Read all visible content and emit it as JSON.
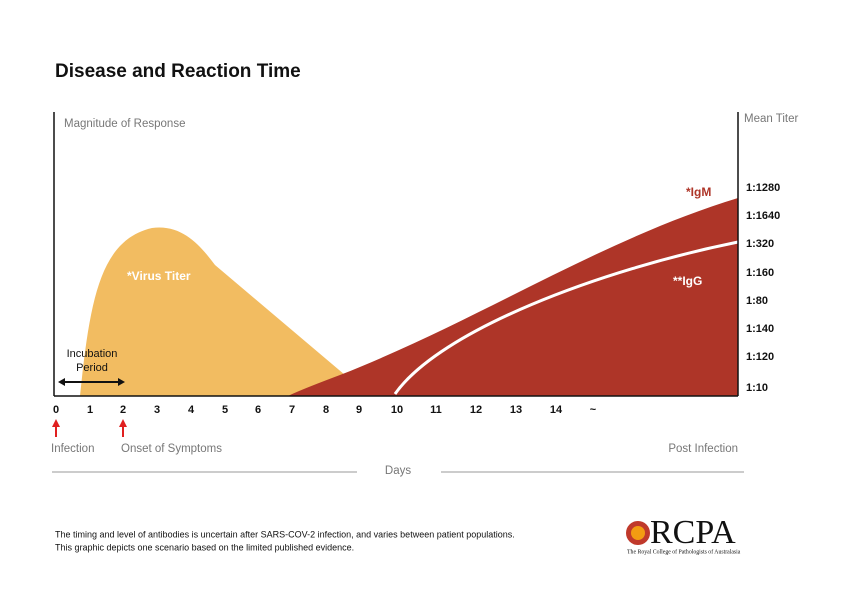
{
  "title": "Disease and Reaction Time",
  "left_axis_label": "Magnitude of Response",
  "right_axis_label": "Mean Titer",
  "x_labels": [
    "0",
    "1",
    "2",
    "3",
    "4",
    "5",
    "6",
    "7",
    "8",
    "9",
    "10",
    "11",
    "12",
    "13",
    "14",
    "~"
  ],
  "titer_labels": [
    "1:1280",
    "1:1640",
    "1:320",
    "1:160",
    "1:80",
    "1:140",
    "1:120",
    "1:10"
  ],
  "curves": {
    "virus": "*Virus Titer",
    "igm": "*IgM",
    "igg": "**IgG"
  },
  "incubation": [
    "Incubation",
    "Period"
  ],
  "markers": {
    "infection": "Infection",
    "onset": "Onset of Symptoms",
    "post": "Post Infection"
  },
  "days": "Days",
  "footnote": [
    "The timing and level of antibodies is uncertain after SARS-COV-2 infection, and varies between patient populations.",
    "This graphic depicts one scenario based on the limited published evidence."
  ],
  "logo": {
    "name": "RCPA",
    "subtitle": "The Royal College of Pathologists of Australasia"
  }
}
